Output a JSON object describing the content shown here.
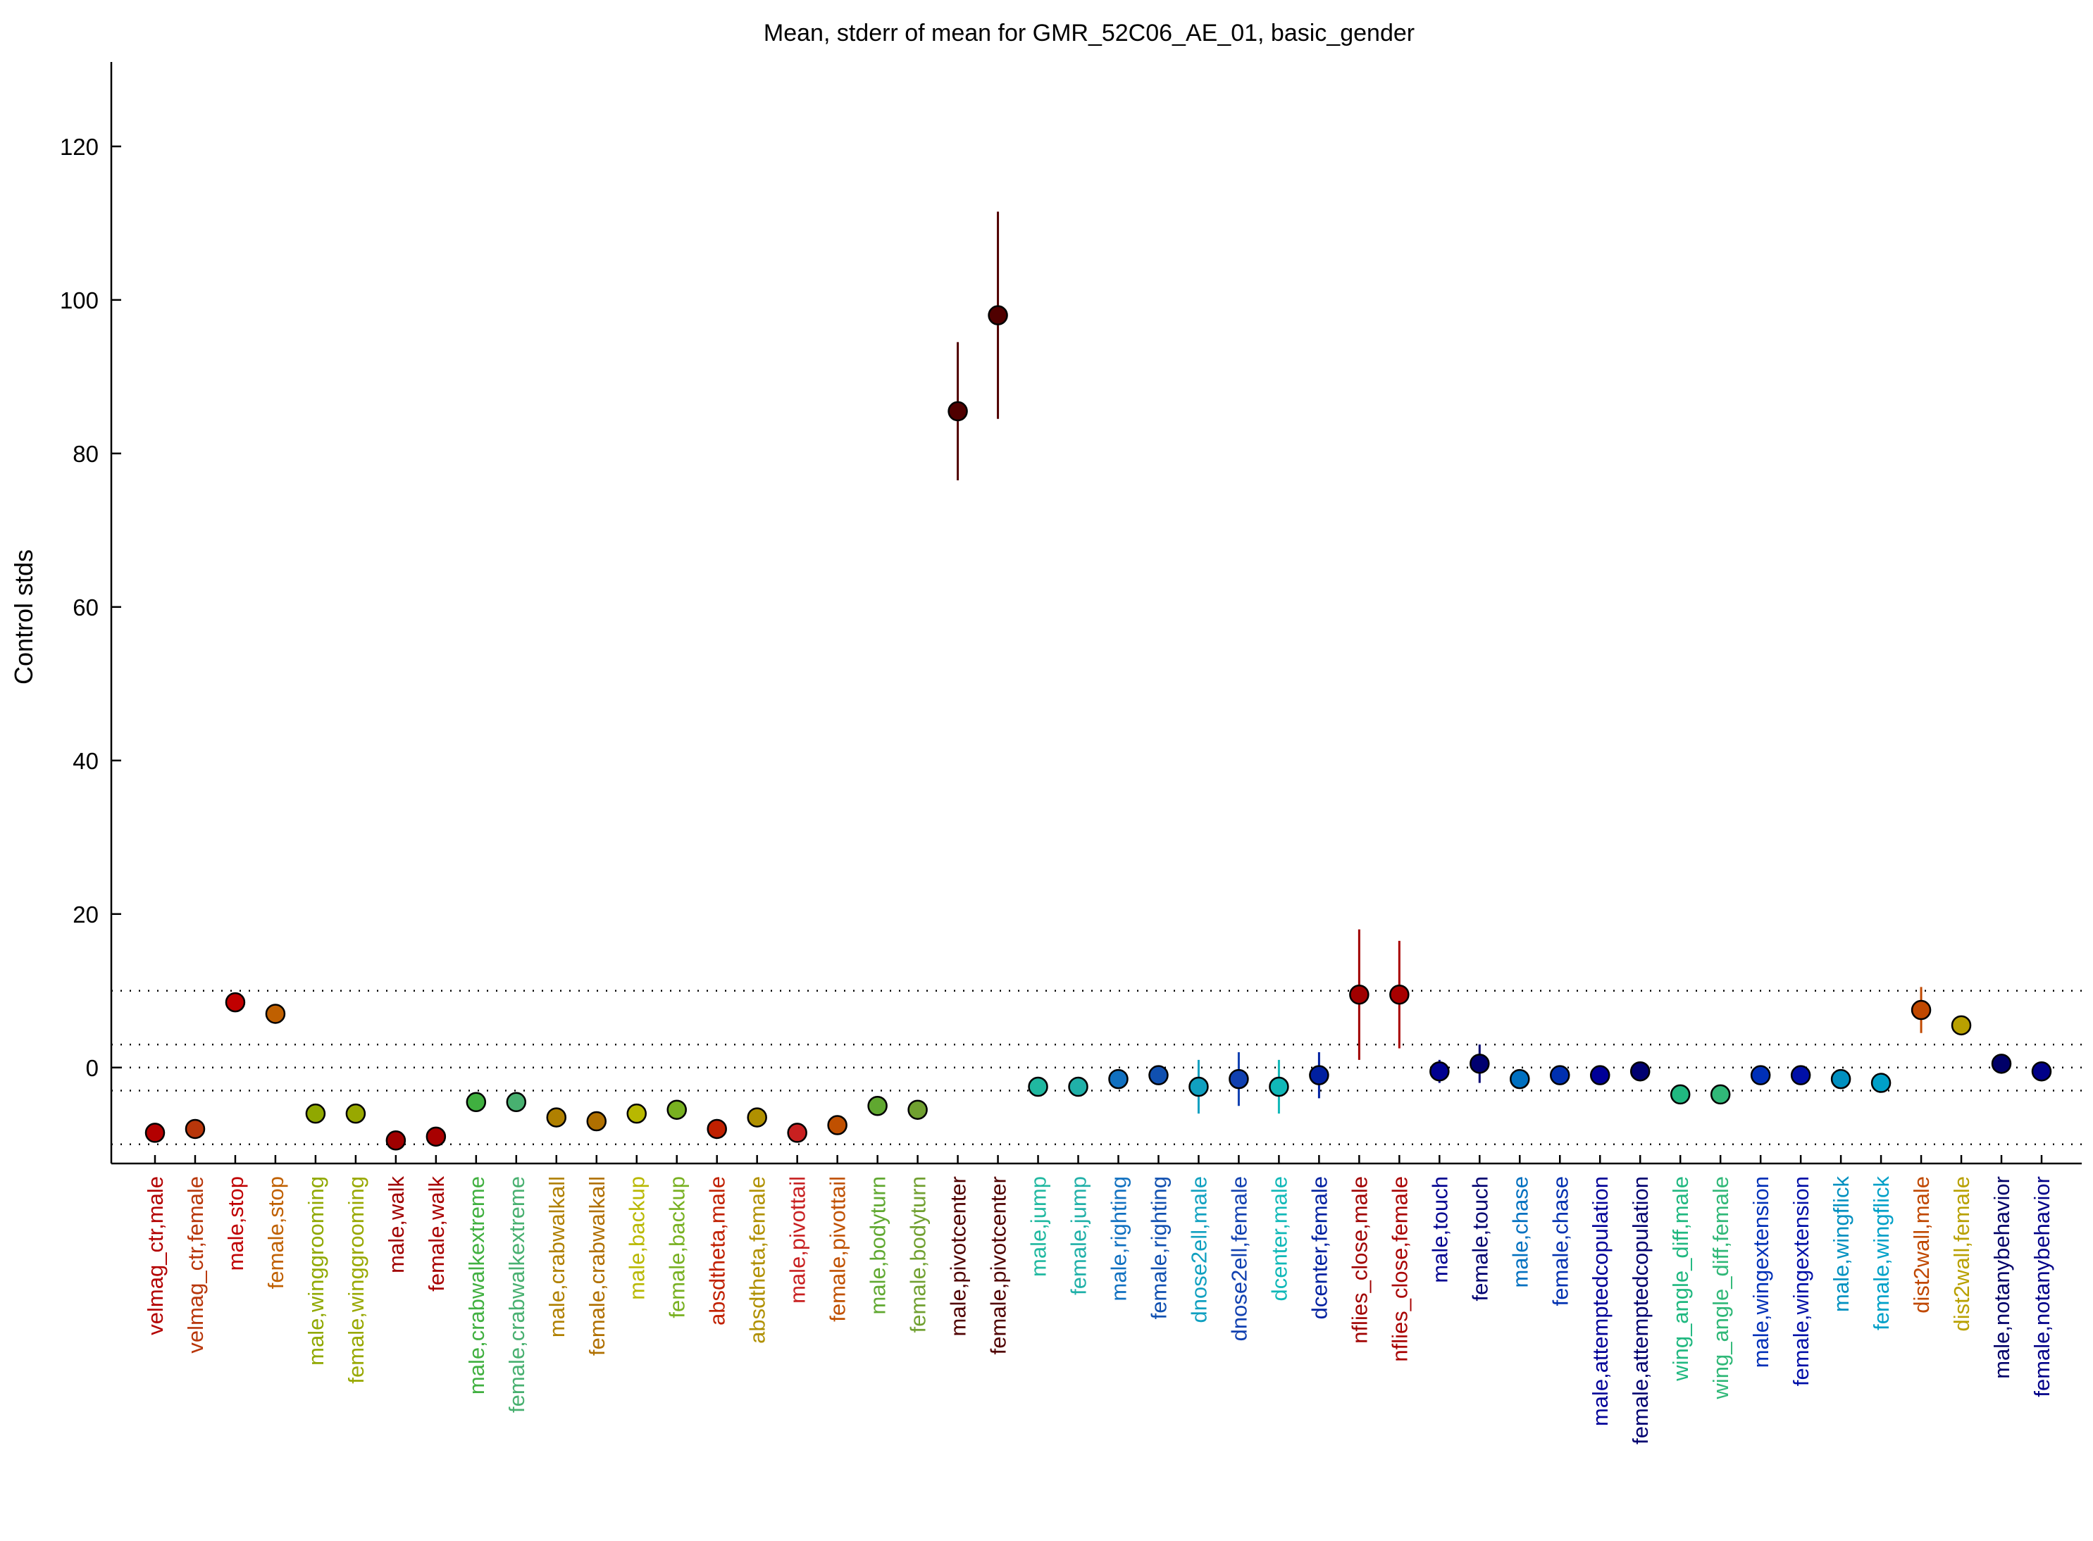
{
  "chart_data": {
    "type": "scatter",
    "title": "Mean, stderr of mean for GMR_52C06_AE_01, basic_gender",
    "xlabel": "",
    "ylabel": "Control stds",
    "ylim": [
      -12.5,
      131
    ],
    "yticks": [
      0,
      20,
      40,
      60,
      80,
      100,
      120
    ],
    "reference_lines": [
      -10,
      -3,
      0,
      3,
      10
    ],
    "grid": false,
    "series": [
      {
        "values": [
          -8.5,
          -8,
          8.5,
          7,
          -6,
          -6,
          -9.5,
          -9,
          -4.5,
          -4.5,
          -6.5,
          -7,
          -6,
          -5.5,
          -8,
          -6.5,
          -8.5,
          -7.5,
          -5,
          -5.5,
          85.5,
          98,
          -2.5,
          -2.5,
          -1.5,
          -1,
          -2.5,
          -1.5,
          -2.5,
          -1,
          9.5,
          9.5,
          -0.5,
          0.5,
          -1.5,
          -1,
          -1,
          -0.5,
          -3.5,
          -3.5,
          -1,
          -1,
          -1.5,
          -2,
          7.5,
          5.5,
          0.5,
          -0.5
        ],
        "stderr": [
          0.5,
          0.5,
          0.5,
          0.5,
          0.3,
          0.3,
          0.3,
          0.3,
          0.3,
          0.3,
          0.3,
          0.3,
          0.3,
          0.3,
          0.5,
          0.3,
          0.5,
          0.5,
          0.3,
          0.3,
          9,
          13.5,
          0.3,
          0.3,
          0.3,
          0.3,
          3.5,
          3.5,
          3.5,
          3,
          8.5,
          7,
          1.5,
          2.5,
          0.3,
          0.3,
          0.3,
          0.3,
          0.5,
          0.5,
          0.3,
          0.3,
          0.5,
          0.5,
          3,
          1,
          0.5,
          0.5
        ]
      }
    ],
    "categories": [
      {
        "label": "velmag_ctr,male",
        "color": "#b30000"
      },
      {
        "label": "velmag_ctr,female",
        "color": "#b8360a"
      },
      {
        "label": "male,stop",
        "color": "#c00000"
      },
      {
        "label": "female,stop",
        "color": "#c06000"
      },
      {
        "label": "male,winggrooming",
        "color": "#90a800"
      },
      {
        "label": "female,winggrooming",
        "color": "#98a800"
      },
      {
        "label": "male,walk",
        "color": "#a00000"
      },
      {
        "label": "female,walk",
        "color": "#a80000"
      },
      {
        "label": "male,crabwalkextreme",
        "color": "#40b040"
      },
      {
        "label": "female,crabwalkextreme",
        "color": "#48b070"
      },
      {
        "label": "male,crabwalkall",
        "color": "#b08000"
      },
      {
        "label": "female,crabwalkall",
        "color": "#b07000"
      },
      {
        "label": "male,backup",
        "color": "#b8b800"
      },
      {
        "label": "female,backup",
        "color": "#78b020"
      },
      {
        "label": "absdtheta,male",
        "color": "#c02000"
      },
      {
        "label": "absdtheta,female",
        "color": "#b09000"
      },
      {
        "label": "male,pivottail",
        "color": "#c82020"
      },
      {
        "label": "female,pivottail",
        "color": "#c05000"
      },
      {
        "label": "male,bodyturn",
        "color": "#60a830"
      },
      {
        "label": "female,bodyturn",
        "color": "#70a030"
      },
      {
        "label": "male,pivotcenter",
        "color": "#500000"
      },
      {
        "label": "female,pivotcenter",
        "color": "#500000"
      },
      {
        "label": "male,jump",
        "color": "#20b8a0"
      },
      {
        "label": "female,jump",
        "color": "#20b0a8"
      },
      {
        "label": "male,righting",
        "color": "#1070c0"
      },
      {
        "label": "female,righting",
        "color": "#1050b0"
      },
      {
        "label": "dnose2ell,male",
        "color": "#10a0c0"
      },
      {
        "label": "dnose2ell,female",
        "color": "#1040b0"
      },
      {
        "label": "dcenter,male",
        "color": "#10b8b8"
      },
      {
        "label": "dcenter,female",
        "color": "#0020a0"
      },
      {
        "label": "nflies_close,male",
        "color": "#a00000"
      },
      {
        "label": "nflies_close,female",
        "color": "#a80000"
      },
      {
        "label": "male,touch",
        "color": "#000090"
      },
      {
        "label": "female,touch",
        "color": "#000070"
      },
      {
        "label": "male,chase",
        "color": "#0070c0"
      },
      {
        "label": "female,chase",
        "color": "#0030b0"
      },
      {
        "label": "male,attemptedcopulation",
        "color": "#000098"
      },
      {
        "label": "female,attemptedcopulation",
        "color": "#000070"
      },
      {
        "label": "wing_angle_diff,male",
        "color": "#20b880"
      },
      {
        "label": "wing_angle_diff,female",
        "color": "#30b878"
      },
      {
        "label": "male,wingextension",
        "color": "#0030b8"
      },
      {
        "label": "female,wingextension",
        "color": "#0010a8"
      },
      {
        "label": "male,wingflick",
        "color": "#0090c0"
      },
      {
        "label": "female,wingflick",
        "color": "#00a0c8"
      },
      {
        "label": "dist2wall,male",
        "color": "#c04800"
      },
      {
        "label": "dist2wall,female",
        "color": "#b8a000"
      },
      {
        "label": "male,notanybehavior",
        "color": "#000068"
      },
      {
        "label": "female,notanybehavior",
        "color": "#000088"
      }
    ]
  }
}
